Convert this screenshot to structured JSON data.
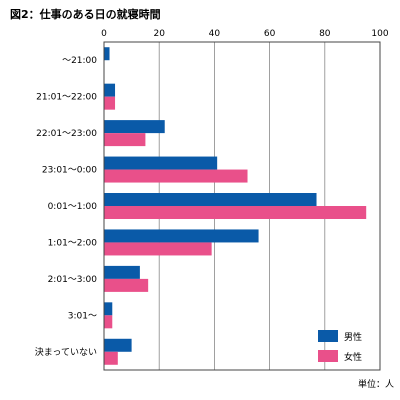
{
  "chart_data": {
    "type": "bar",
    "orientation": "horizontal",
    "title": "図2：仕事のある日の就寝時間",
    "unit_label": "単位：人",
    "categories": [
      "〜21:00",
      "21:01〜22:00",
      "22:01〜23:00",
      "23:01〜0:00",
      "0:01〜1:00",
      "1:01〜2:00",
      "2:01〜3:00",
      "3:01〜",
      "決まっていない"
    ],
    "series": [
      {
        "name": "男性",
        "color": "#0a5aa8",
        "values": [
          2,
          4,
          22,
          41,
          77,
          56,
          13,
          3,
          10
        ]
      },
      {
        "name": "女性",
        "color": "#e9508a",
        "values": [
          0,
          4,
          15,
          52,
          95,
          39,
          16,
          3,
          5
        ]
      }
    ],
    "xlim": [
      0,
      100
    ],
    "xticks": [
      "0",
      "20",
      "40",
      "60",
      "80",
      "100"
    ],
    "grid": true,
    "legend_position": "bottom-right"
  }
}
